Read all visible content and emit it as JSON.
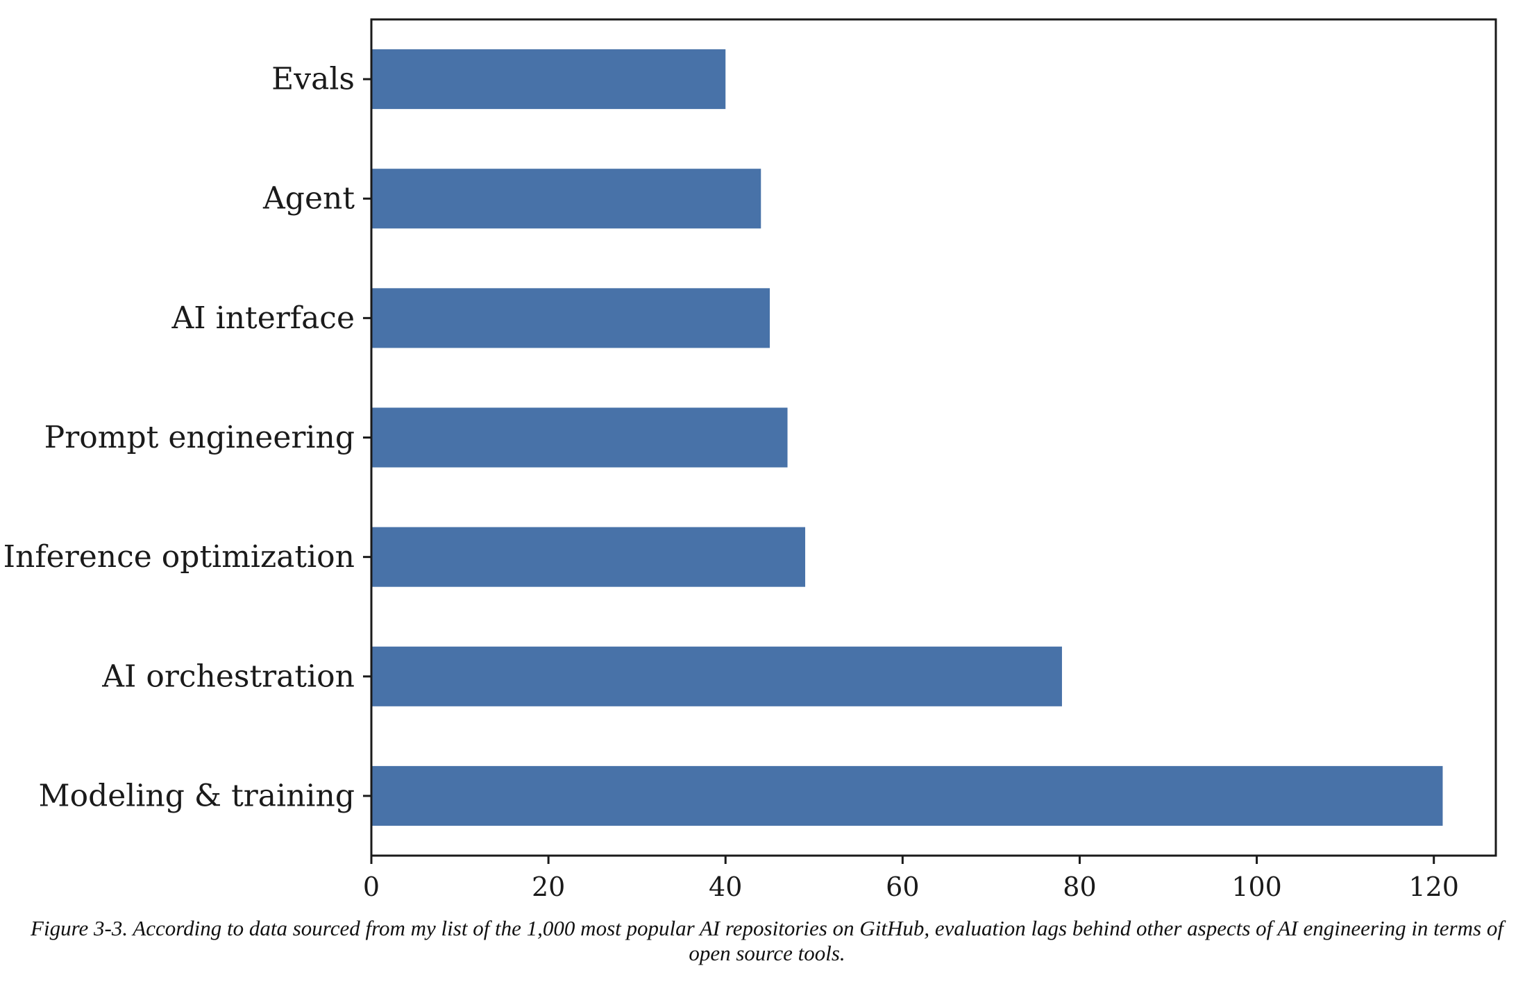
{
  "chart_data": {
    "type": "bar",
    "orientation": "horizontal",
    "categories": [
      "Evals",
      "Agent",
      "AI interface",
      "Prompt engineering",
      "Inference optimization",
      "AI orchestration",
      "Modeling & training"
    ],
    "values": [
      40,
      44,
      45,
      47,
      49,
      78,
      121
    ],
    "xlim": [
      0,
      127
    ],
    "xticks": [
      0,
      20,
      40,
      60,
      80,
      100,
      120
    ],
    "title": "",
    "xlabel": "",
    "ylabel": "",
    "grid": false,
    "bar_color": "#4872a8"
  },
  "caption": "Figure 3-3. According to data sourced from my list of the 1,000 most popular AI repositories on GitHub, evaluation lags behind other aspects of AI engineering in terms of open source tools."
}
